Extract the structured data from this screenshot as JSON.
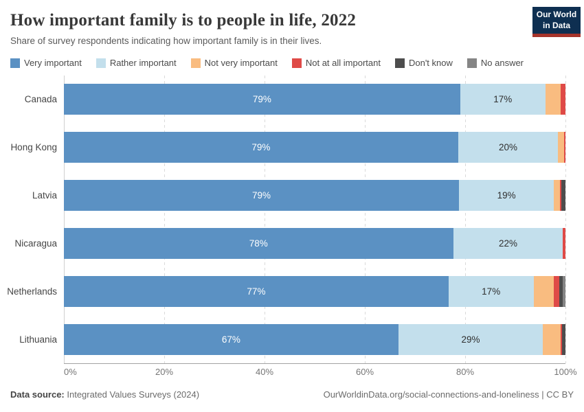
{
  "header": {
    "title": "How important family is to people in life, 2022",
    "subtitle": "Share of survey respondents indicating how important family is in their lives."
  },
  "logo": {
    "line1": "Our World",
    "line2": "in Data",
    "bg_color": "#0e2f51",
    "strip_color": "#a6342b"
  },
  "footer": {
    "datasource_label": "Data source:",
    "datasource_value": " Integrated Values Surveys (2024)",
    "link": "OurWorldinData.org/social-connections-and-loneliness | CC BY"
  },
  "chart_data": {
    "type": "bar",
    "stacked": true,
    "orientation": "horizontal",
    "title": "How important family is to people in life, 2022",
    "xlabel": "",
    "ylabel": "",
    "xlim": [
      0,
      100
    ],
    "grid": true,
    "legend_position": "top",
    "categories": [
      "Canada",
      "Hong Kong",
      "Latvia",
      "Nicaragua",
      "Netherlands",
      "Lithuania"
    ],
    "series": [
      {
        "name": "Very important",
        "color": "#5b91c3",
        "values": [
          79,
          79,
          79,
          78,
          77,
          67
        ]
      },
      {
        "name": "Rather important",
        "color": "#c3dfec",
        "values": [
          17,
          20,
          19,
          22,
          17,
          29
        ]
      },
      {
        "name": "Not very important",
        "color": "#f9bc80",
        "values": [
          3,
          1.2,
          1.2,
          0,
          4,
          3.5
        ]
      },
      {
        "name": "Not at all important",
        "color": "#df4a47",
        "values": [
          1,
          0.3,
          0.3,
          0.5,
          1.2,
          0.3
        ]
      },
      {
        "name": "Don't know",
        "color": "#4d4d4d",
        "values": [
          0,
          0,
          0.8,
          0,
          0.7,
          0.7
        ]
      },
      {
        "name": "No answer",
        "color": "#858585",
        "values": [
          0,
          0,
          0,
          0,
          0.5,
          0
        ]
      }
    ],
    "segment_labels": [
      [
        "79%",
        "17%"
      ],
      [
        "79%",
        "20%"
      ],
      [
        "79%",
        "19%"
      ],
      [
        "78%",
        "22%"
      ],
      [
        "77%",
        "17%"
      ],
      [
        "67%",
        "29%"
      ]
    ],
    "segment_label_colors": [
      "#ffffff",
      "#2f2f2f"
    ],
    "xticks": [
      {
        "value": 0,
        "label": "0%"
      },
      {
        "value": 20,
        "label": "20%"
      },
      {
        "value": 40,
        "label": "40%"
      },
      {
        "value": 60,
        "label": "60%"
      },
      {
        "value": 80,
        "label": "80%"
      },
      {
        "value": 100,
        "label": "100%"
      }
    ]
  }
}
